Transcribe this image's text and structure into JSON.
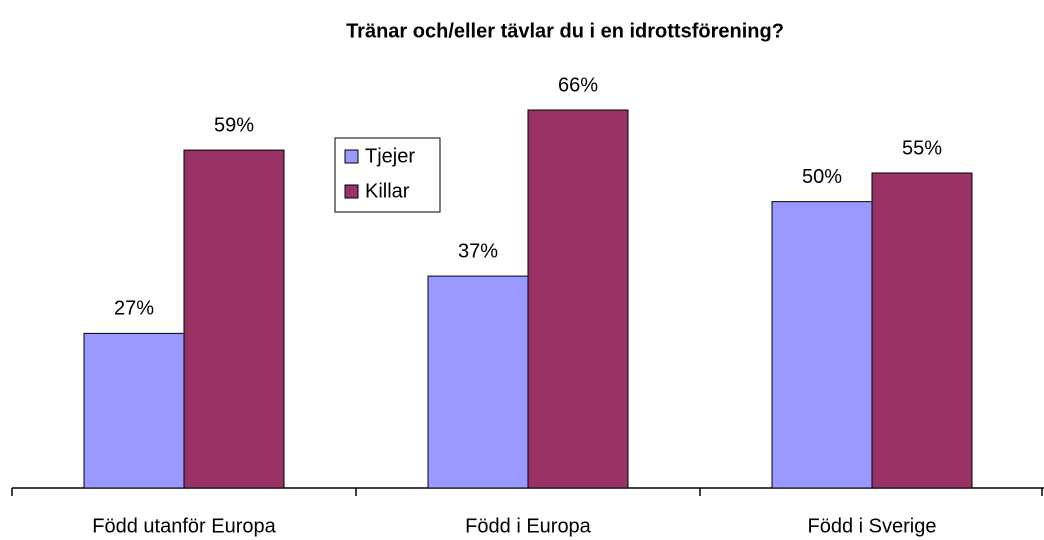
{
  "chart_data": {
    "type": "bar",
    "title": "Tränar och/eller tävlar du i en idrottsförening?",
    "categories": [
      "Född utanför Europa",
      "Född i Europa",
      "Född i Sverige"
    ],
    "series": [
      {
        "name": "Tjejer",
        "color": "#9999ff",
        "values": [
          27,
          37,
          50
        ],
        "value_labels": [
          "27%",
          "37%",
          "50%"
        ]
      },
      {
        "name": "Killar",
        "color": "#993366",
        "values": [
          59,
          66,
          55
        ],
        "value_labels": [
          "59%",
          "66%",
          "55%"
        ]
      }
    ],
    "legend": "upper left"
  }
}
